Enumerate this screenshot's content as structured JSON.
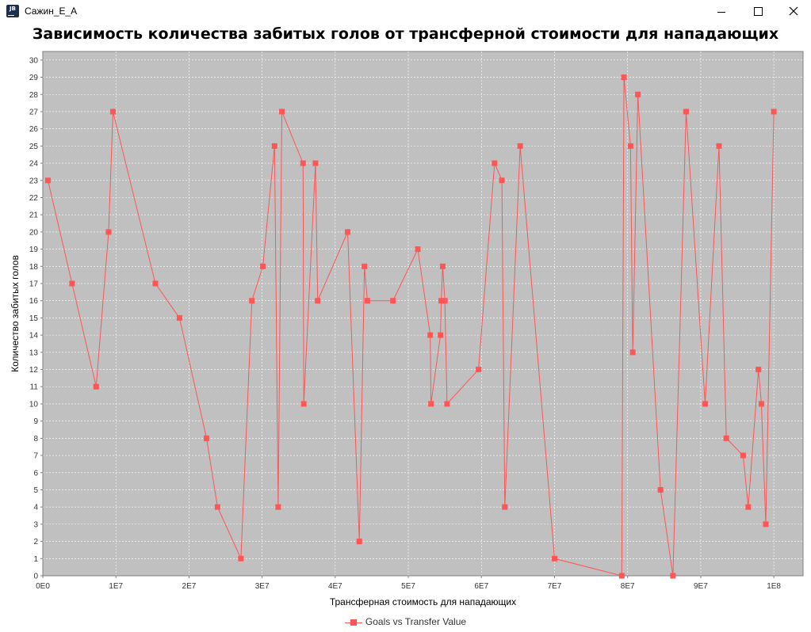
{
  "window": {
    "title": "Сажин_Е_А",
    "icon_label": "JB"
  },
  "chart_data": {
    "type": "line",
    "title": "Зависимость количества забитых голов от трансферной стоимости для нападающих",
    "xlabel": "Трансферная стоимость для нападающих",
    "ylabel": "Количество забитых голов",
    "xlim": [
      0,
      104000000
    ],
    "ylim": [
      0,
      30.5
    ],
    "x_ticks": [
      0,
      10000000,
      20000000,
      30000000,
      40000000,
      50000000,
      60000000,
      70000000,
      80000000,
      90000000,
      100000000
    ],
    "x_tick_labels": [
      "0E0",
      "1E7",
      "2E7",
      "3E7",
      "4E7",
      "5E7",
      "6E7",
      "7E7",
      "8E7",
      "9E7",
      "1E8"
    ],
    "y_ticks": [
      0,
      1,
      2,
      3,
      4,
      5,
      6,
      7,
      8,
      9,
      10,
      11,
      12,
      13,
      14,
      15,
      16,
      17,
      18,
      19,
      20,
      21,
      22,
      23,
      24,
      25,
      26,
      27,
      28,
      29,
      30
    ],
    "grid": true,
    "legend_position": "bottom",
    "colors": {
      "series": "#ff5555",
      "plot_background": "#c0c0c0",
      "grid": "#ffffff"
    },
    "series": [
      {
        "name": "Goals vs Transfer Value",
        "x": [
          700000,
          4000000,
          7300000,
          9000000,
          9600000,
          15400000,
          18700000,
          22400000,
          23900000,
          27100000,
          28600000,
          30100000,
          31700000,
          32200000,
          32700000,
          35600000,
          35700000,
          37300000,
          37600000,
          41700000,
          43300000,
          44000000,
          44400000,
          47900000,
          51300000,
          53000000,
          53100000,
          54400000,
          54500000,
          54700000,
          55000000,
          55300000,
          59600000,
          61800000,
          62800000,
          63200000,
          65300000,
          70000000,
          79200000,
          79500000,
          80400000,
          80700000,
          81400000,
          84500000,
          86200000,
          88000000,
          90600000,
          92500000,
          93500000,
          95800000,
          96500000,
          97900000,
          98300000,
          98900000,
          100000000
        ],
        "y": [
          23,
          17,
          11,
          20,
          27,
          17,
          15,
          8,
          4,
          1,
          16,
          18,
          25,
          4,
          27,
          24,
          10,
          24,
          16,
          20,
          2,
          18,
          16,
          16,
          19,
          14,
          10,
          14,
          16,
          18,
          16,
          10,
          12,
          24,
          23,
          4,
          25,
          1,
          0,
          29,
          25,
          13,
          28,
          5,
          0,
          27,
          10,
          25,
          8,
          7,
          4,
          12,
          10,
          3,
          27
        ]
      }
    ]
  }
}
